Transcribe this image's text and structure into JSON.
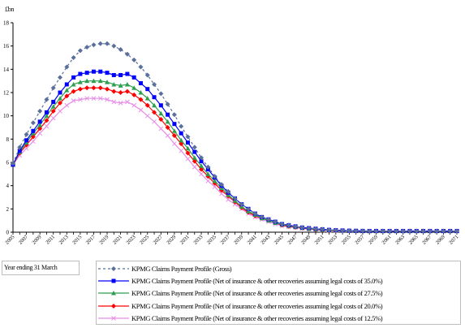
{
  "chart_data": {
    "type": "line",
    "ylabel": "£bn",
    "ylim": [
      0,
      18
    ],
    "yticks": [
      0,
      2,
      4,
      6,
      8,
      10,
      12,
      14,
      16,
      18
    ],
    "x_tick_labels": [
      "2005",
      "2007",
      "2009",
      "2011",
      "2013",
      "2015",
      "2017",
      "2019",
      "2021",
      "2023",
      "2025",
      "2027",
      "2029",
      "2031",
      "2033",
      "2035",
      "2037",
      "2039",
      "2041",
      "2043",
      "2045",
      "2047",
      "2049",
      "2051",
      "2053",
      "2055",
      "2057",
      "2059",
      "2061",
      "2063",
      "2065",
      "2067",
      "2069",
      "2071"
    ],
    "x_axis_title": "Year ending 31 March",
    "grid": false,
    "legend_position": "bottom",
    "series": [
      {
        "name": "KPMG Claims Payment Profile (Gross)",
        "color": "#5b6f9b",
        "marker": "diamond",
        "dashed": true,
        "values": [
          5.9,
          7.3,
          8.4,
          9.4,
          10.4,
          11.4,
          12.4,
          13.3,
          14.2,
          15.0,
          15.6,
          15.9,
          16.1,
          16.2,
          16.2,
          16.0,
          15.7,
          15.3,
          14.8,
          14.2,
          13.5,
          12.7,
          11.9,
          11.0,
          10.1,
          9.1,
          8.2,
          7.3,
          6.4,
          5.6,
          4.8,
          4.1,
          3.5,
          2.9,
          2.4,
          2.0,
          1.6,
          1.3,
          1.1,
          0.9,
          0.7,
          0.6,
          0.5,
          0.4,
          0.35,
          0.3,
          0.25,
          0.2,
          0.17,
          0.15,
          0.13,
          0.12,
          0.11,
          0.1,
          0.1,
          0.1,
          0.1,
          0.1,
          0.1,
          0.1,
          0.1,
          0.1,
          0.1,
          0.1,
          0.1,
          0.1,
          0.1
        ]
      },
      {
        "name": "KPMG Claims Payment Profile (Net of insurance & other recoveries assuming legal costs of 35.0%)",
        "color": "#0000ff",
        "marker": "square",
        "dashed": false,
        "values": [
          5.8,
          7.0,
          7.9,
          8.7,
          9.5,
          10.3,
          11.2,
          12.0,
          12.7,
          13.3,
          13.6,
          13.7,
          13.8,
          13.8,
          13.7,
          13.5,
          13.5,
          13.6,
          13.3,
          12.8,
          12.3,
          11.6,
          10.9,
          10.1,
          9.3,
          8.5,
          7.7,
          6.9,
          6.1,
          5.4,
          4.7,
          4.0,
          3.4,
          2.9,
          2.4,
          2.0,
          1.6,
          1.3,
          1.1,
          0.9,
          0.7,
          0.6,
          0.5,
          0.4,
          0.35,
          0.3,
          0.25,
          0.2,
          0.17,
          0.15,
          0.13,
          0.12,
          0.11,
          0.1,
          0.1,
          0.1,
          0.1,
          0.1,
          0.1,
          0.1,
          0.1,
          0.1,
          0.1,
          0.1,
          0.1,
          0.1,
          0.1
        ]
      },
      {
        "name": "KPMG Claims Payment Profile (Net of insurance & other recoveries assuming legal costs of 27.5%)",
        "color": "#2e9e4f",
        "marker": "triangle",
        "dashed": false,
        "values": [
          5.8,
          6.9,
          7.7,
          8.5,
          9.2,
          10.0,
          10.8,
          11.5,
          12.2,
          12.7,
          12.9,
          13.0,
          13.0,
          13.0,
          12.9,
          12.7,
          12.6,
          12.7,
          12.4,
          12.0,
          11.5,
          10.9,
          10.2,
          9.5,
          8.7,
          7.9,
          7.2,
          6.4,
          5.7,
          5.0,
          4.4,
          3.8,
          3.2,
          2.7,
          2.2,
          1.8,
          1.5,
          1.2,
          1.0,
          0.8,
          0.65,
          0.55,
          0.45,
          0.37,
          0.3,
          0.25,
          0.2,
          0.17,
          0.15,
          0.13,
          0.12,
          0.11,
          0.1,
          0.1,
          0.1,
          0.1,
          0.1,
          0.1,
          0.1,
          0.1,
          0.1,
          0.1,
          0.1,
          0.1,
          0.1,
          0.1,
          0.1
        ]
      },
      {
        "name": "KPMG Claims Payment Profile (Net of insurance & other recoveries assuming legal costs of 20.0%)",
        "color": "#ff0000",
        "marker": "diamond",
        "dashed": false,
        "values": [
          5.8,
          6.8,
          7.5,
          8.2,
          8.9,
          9.6,
          10.4,
          11.1,
          11.7,
          12.1,
          12.3,
          12.4,
          12.4,
          12.4,
          12.3,
          12.1,
          12.0,
          12.1,
          11.8,
          11.4,
          10.9,
          10.3,
          9.7,
          9.0,
          8.3,
          7.6,
          6.8,
          6.1,
          5.4,
          4.8,
          4.2,
          3.6,
          3.1,
          2.6,
          2.1,
          1.7,
          1.4,
          1.2,
          1.0,
          0.8,
          0.6,
          0.5,
          0.42,
          0.35,
          0.28,
          0.22,
          0.18,
          0.15,
          0.13,
          0.12,
          0.11,
          0.1,
          0.1,
          0.1,
          0.1,
          0.1,
          0.1,
          0.1,
          0.1,
          0.1,
          0.1,
          0.1,
          0.1,
          0.1,
          0.1,
          0.1,
          0.1
        ]
      },
      {
        "name": "KPMG Claims Payment Profile (Net of insurance & other recoveries assuming legal costs of 12.5%)",
        "color": "#e88ee8",
        "marker": "cross",
        "dashed": false,
        "values": [
          5.8,
          6.6,
          7.2,
          7.8,
          8.5,
          9.1,
          9.8,
          10.4,
          10.9,
          11.3,
          11.4,
          11.5,
          11.5,
          11.5,
          11.4,
          11.2,
          11.1,
          11.2,
          10.9,
          10.5,
          10.0,
          9.5,
          8.9,
          8.3,
          7.6,
          7.0,
          6.3,
          5.6,
          5.0,
          4.4,
          3.9,
          3.3,
          2.8,
          2.4,
          2.0,
          1.6,
          1.3,
          1.1,
          0.9,
          0.7,
          0.55,
          0.45,
          0.38,
          0.32,
          0.26,
          0.2,
          0.16,
          0.13,
          0.12,
          0.11,
          0.1,
          0.1,
          0.1,
          0.1,
          0.1,
          0.1,
          0.1,
          0.1,
          0.1,
          0.1,
          0.1,
          0.1,
          0.1,
          0.1,
          0.1,
          0.1,
          0.1
        ]
      }
    ]
  }
}
